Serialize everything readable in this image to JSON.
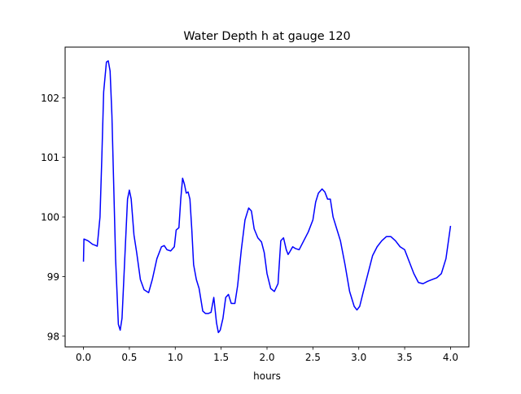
{
  "chart_data": {
    "type": "line",
    "title": "Water Depth h at gauge 120",
    "xlabel": "hours",
    "ylabel": "",
    "xlim": [
      -0.2,
      4.2
    ],
    "ylim": [
      97.82,
      102.85
    ],
    "xticks": [
      0.0,
      0.5,
      1.0,
      1.5,
      2.0,
      2.5,
      3.0,
      3.5,
      4.0
    ],
    "xtick_labels": [
      "0.0",
      "0.5",
      "1.0",
      "1.5",
      "2.0",
      "2.5",
      "3.0",
      "3.5",
      "4.0"
    ],
    "yticks": [
      98,
      99,
      100,
      101,
      102
    ],
    "ytick_labels": [
      "98",
      "99",
      "100",
      "101",
      "102"
    ],
    "grid": false,
    "legend": "none",
    "series": [
      {
        "color": "#0000ff",
        "x": [
          0.0,
          0.005,
          0.05,
          0.1,
          0.12,
          0.15,
          0.18,
          0.2,
          0.22,
          0.25,
          0.27,
          0.29,
          0.31,
          0.33,
          0.35,
          0.38,
          0.4,
          0.42,
          0.45,
          0.48,
          0.5,
          0.52,
          0.55,
          0.58,
          0.62,
          0.66,
          0.71,
          0.75,
          0.8,
          0.85,
          0.88,
          0.91,
          0.95,
          0.99,
          1.01,
          1.04,
          1.06,
          1.08,
          1.1,
          1.12,
          1.14,
          1.16,
          1.18,
          1.2,
          1.23,
          1.26,
          1.3,
          1.33,
          1.36,
          1.39,
          1.42,
          1.45,
          1.47,
          1.49,
          1.52,
          1.55,
          1.58,
          1.61,
          1.65,
          1.68,
          1.72,
          1.76,
          1.8,
          1.83,
          1.86,
          1.9,
          1.94,
          1.97,
          2.0,
          2.04,
          2.08,
          2.12,
          2.15,
          2.18,
          2.21,
          2.23,
          2.25,
          2.28,
          2.31,
          2.35,
          2.4,
          2.45,
          2.5,
          2.53,
          2.56,
          2.6,
          2.63,
          2.66,
          2.69,
          2.72,
          2.76,
          2.8,
          2.85,
          2.9,
          2.95,
          2.98,
          3.01,
          3.05,
          3.1,
          3.15,
          3.2,
          3.25,
          3.3,
          3.35,
          3.4,
          3.45,
          3.5,
          3.55,
          3.6,
          3.65,
          3.7,
          3.75,
          3.8,
          3.85,
          3.9,
          3.95,
          4.0
        ],
        "y": [
          99.25,
          99.63,
          99.6,
          99.54,
          99.53,
          99.51,
          100.0,
          101.0,
          102.1,
          102.6,
          102.62,
          102.45,
          101.7,
          100.5,
          99.3,
          98.2,
          98.1,
          98.3,
          99.3,
          100.3,
          100.45,
          100.3,
          99.7,
          99.4,
          98.95,
          98.78,
          98.73,
          98.95,
          99.3,
          99.5,
          99.52,
          99.45,
          99.43,
          99.5,
          99.78,
          99.82,
          100.3,
          100.65,
          100.55,
          100.4,
          100.42,
          100.3,
          99.8,
          99.2,
          98.95,
          98.8,
          98.42,
          98.38,
          98.38,
          98.4,
          98.65,
          98.22,
          98.06,
          98.1,
          98.3,
          98.65,
          98.7,
          98.55,
          98.55,
          98.85,
          99.45,
          99.95,
          100.15,
          100.1,
          99.8,
          99.65,
          99.58,
          99.4,
          99.05,
          98.8,
          98.75,
          98.88,
          99.6,
          99.65,
          99.45,
          99.37,
          99.42,
          99.5,
          99.47,
          99.45,
          99.6,
          99.75,
          99.95,
          100.25,
          100.4,
          100.47,
          100.42,
          100.3,
          100.3,
          100.0,
          99.8,
          99.6,
          99.2,
          98.75,
          98.5,
          98.44,
          98.5,
          98.75,
          99.05,
          99.35,
          99.5,
          99.6,
          99.67,
          99.67,
          99.6,
          99.5,
          99.45,
          99.25,
          99.05,
          98.9,
          98.88,
          98.92,
          98.95,
          98.98,
          99.05,
          99.3,
          99.85
        ]
      }
    ]
  }
}
